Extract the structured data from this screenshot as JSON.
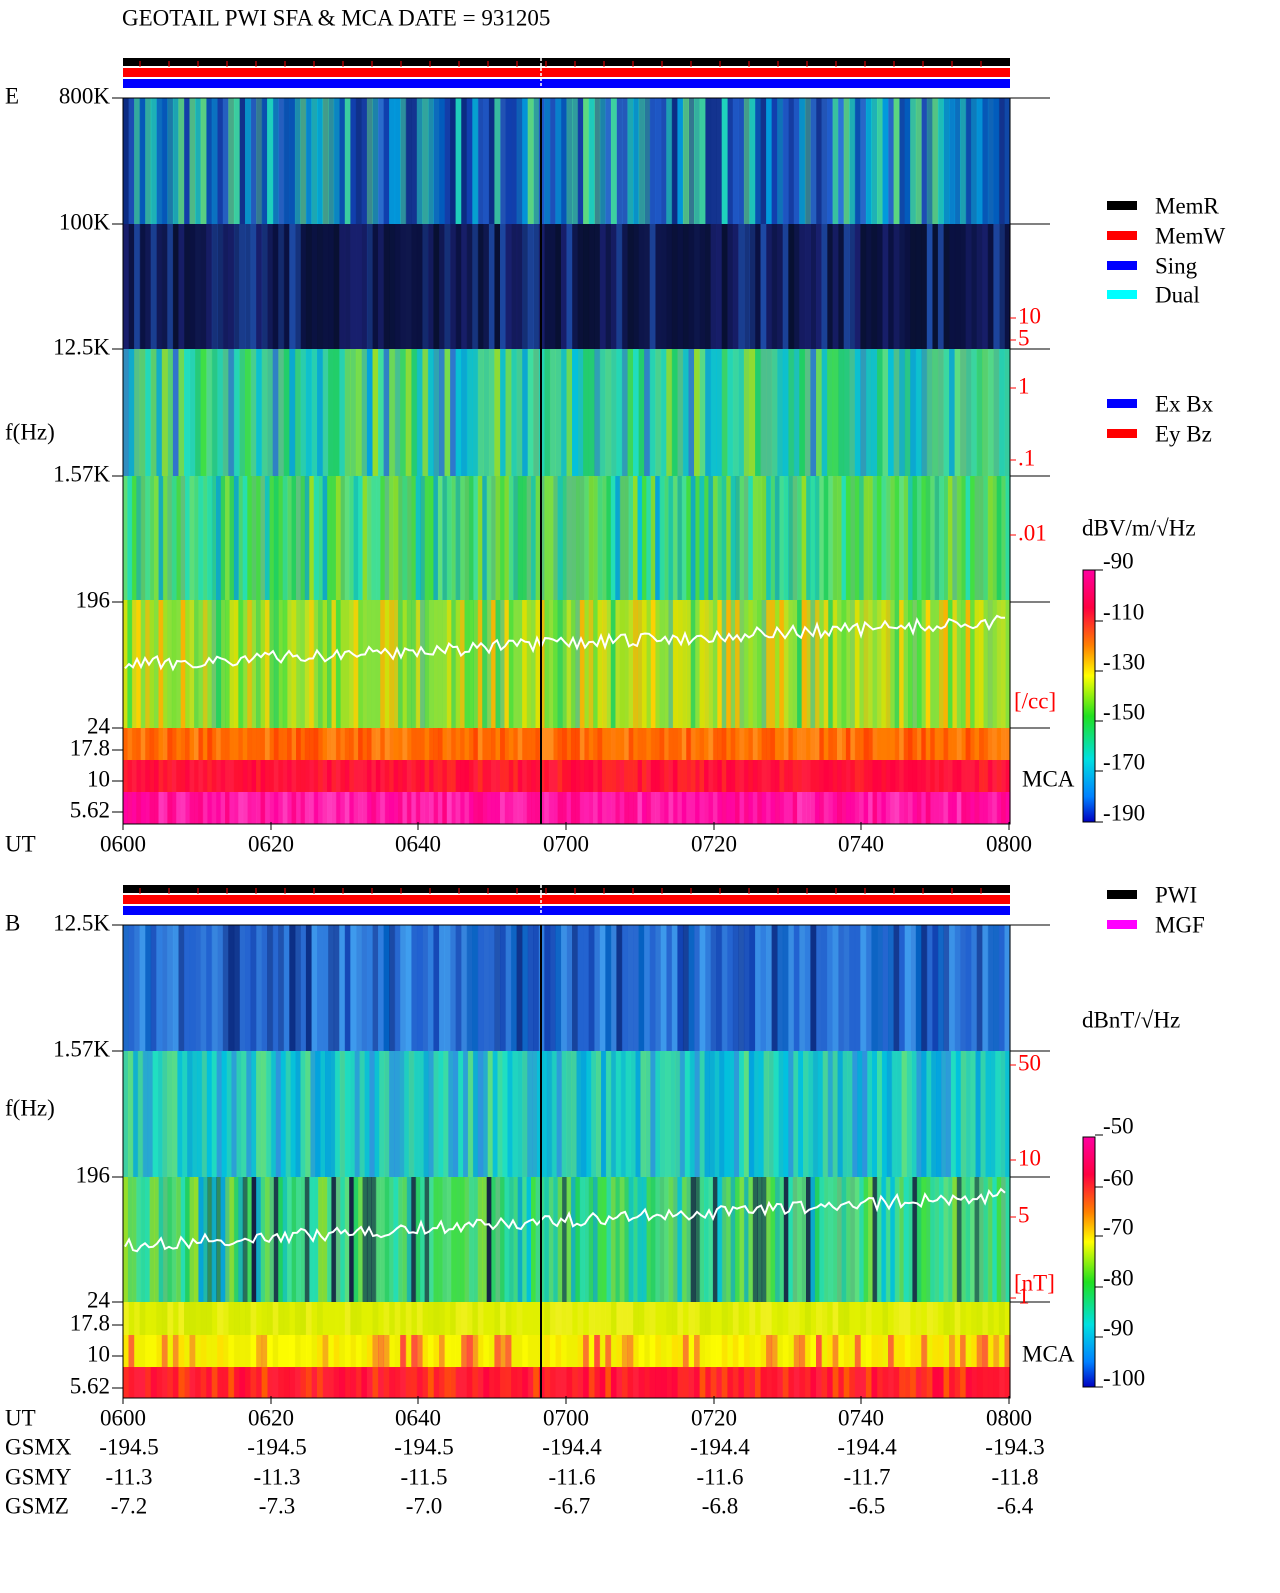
{
  "title": "GEOTAIL  PWI SFA & MCA   DATE = 931205",
  "legend_mode": [
    {
      "label": "MemR",
      "color": "#000000"
    },
    {
      "label": "MemW",
      "color": "#ff0000"
    },
    {
      "label": "Sing",
      "color": "#0000ff"
    },
    {
      "label": "Dual",
      "color": "#00ffff"
    }
  ],
  "legend_antenna": [
    {
      "label": "Ex Bx",
      "color": "#0000ff"
    },
    {
      "label": "Ey Bz",
      "color": "#ff0000"
    }
  ],
  "legend_source": [
    {
      "label": "PWI",
      "color": "#000000"
    },
    {
      "label": "MGF",
      "color": "#ff00ff"
    }
  ],
  "x_axis": {
    "label": "UT",
    "ticks": [
      "0600",
      "0620",
      "0640",
      "0700",
      "0720",
      "0740",
      "0800"
    ]
  },
  "panels": [
    {
      "name": "E",
      "y_label": "f(Hz)",
      "y_ticks": [
        "800K",
        "100K",
        "12.5K",
        "1.57K",
        "196",
        "24",
        "17.8",
        "10",
        "5.62"
      ],
      "right_ticks": [
        "10",
        "5",
        "1",
        ".1",
        ".01"
      ],
      "right_unit": "[/cc]",
      "mca_label": "MCA",
      "colorbar": {
        "unit": "dBV/m/√Hz",
        "ticks": [
          "-90",
          "-110",
          "-130",
          "-150",
          "-170",
          "-190"
        ]
      }
    },
    {
      "name": "B",
      "y_label": "f(Hz)",
      "y_ticks": [
        "12.5K",
        "1.57K",
        "196",
        "24",
        "17.8",
        "10",
        "5.62"
      ],
      "right_ticks": [
        "50",
        "10",
        "5",
        "1"
      ],
      "right_unit": "[nT]",
      "mca_label": "MCA",
      "colorbar": {
        "unit": "dBnT/√Hz",
        "ticks": [
          "-50",
          "-60",
          "-70",
          "-80",
          "-90",
          "-100"
        ]
      }
    }
  ],
  "position": {
    "rows": [
      {
        "label": "GSMX",
        "values": [
          "-194.5",
          "-194.5",
          "-194.5",
          "-194.4",
          "-194.4",
          "-194.4",
          "-194.3"
        ]
      },
      {
        "label": "GSMY",
        "values": [
          "-11.3",
          "-11.3",
          "-11.5",
          "-11.6",
          "-11.6",
          "-11.7",
          "-11.8"
        ]
      },
      {
        "label": "GSMZ",
        "values": [
          "-7.2",
          "-7.3",
          "-7.0",
          "-6.7",
          "-6.8",
          "-6.5",
          "-6.4"
        ]
      }
    ]
  }
}
